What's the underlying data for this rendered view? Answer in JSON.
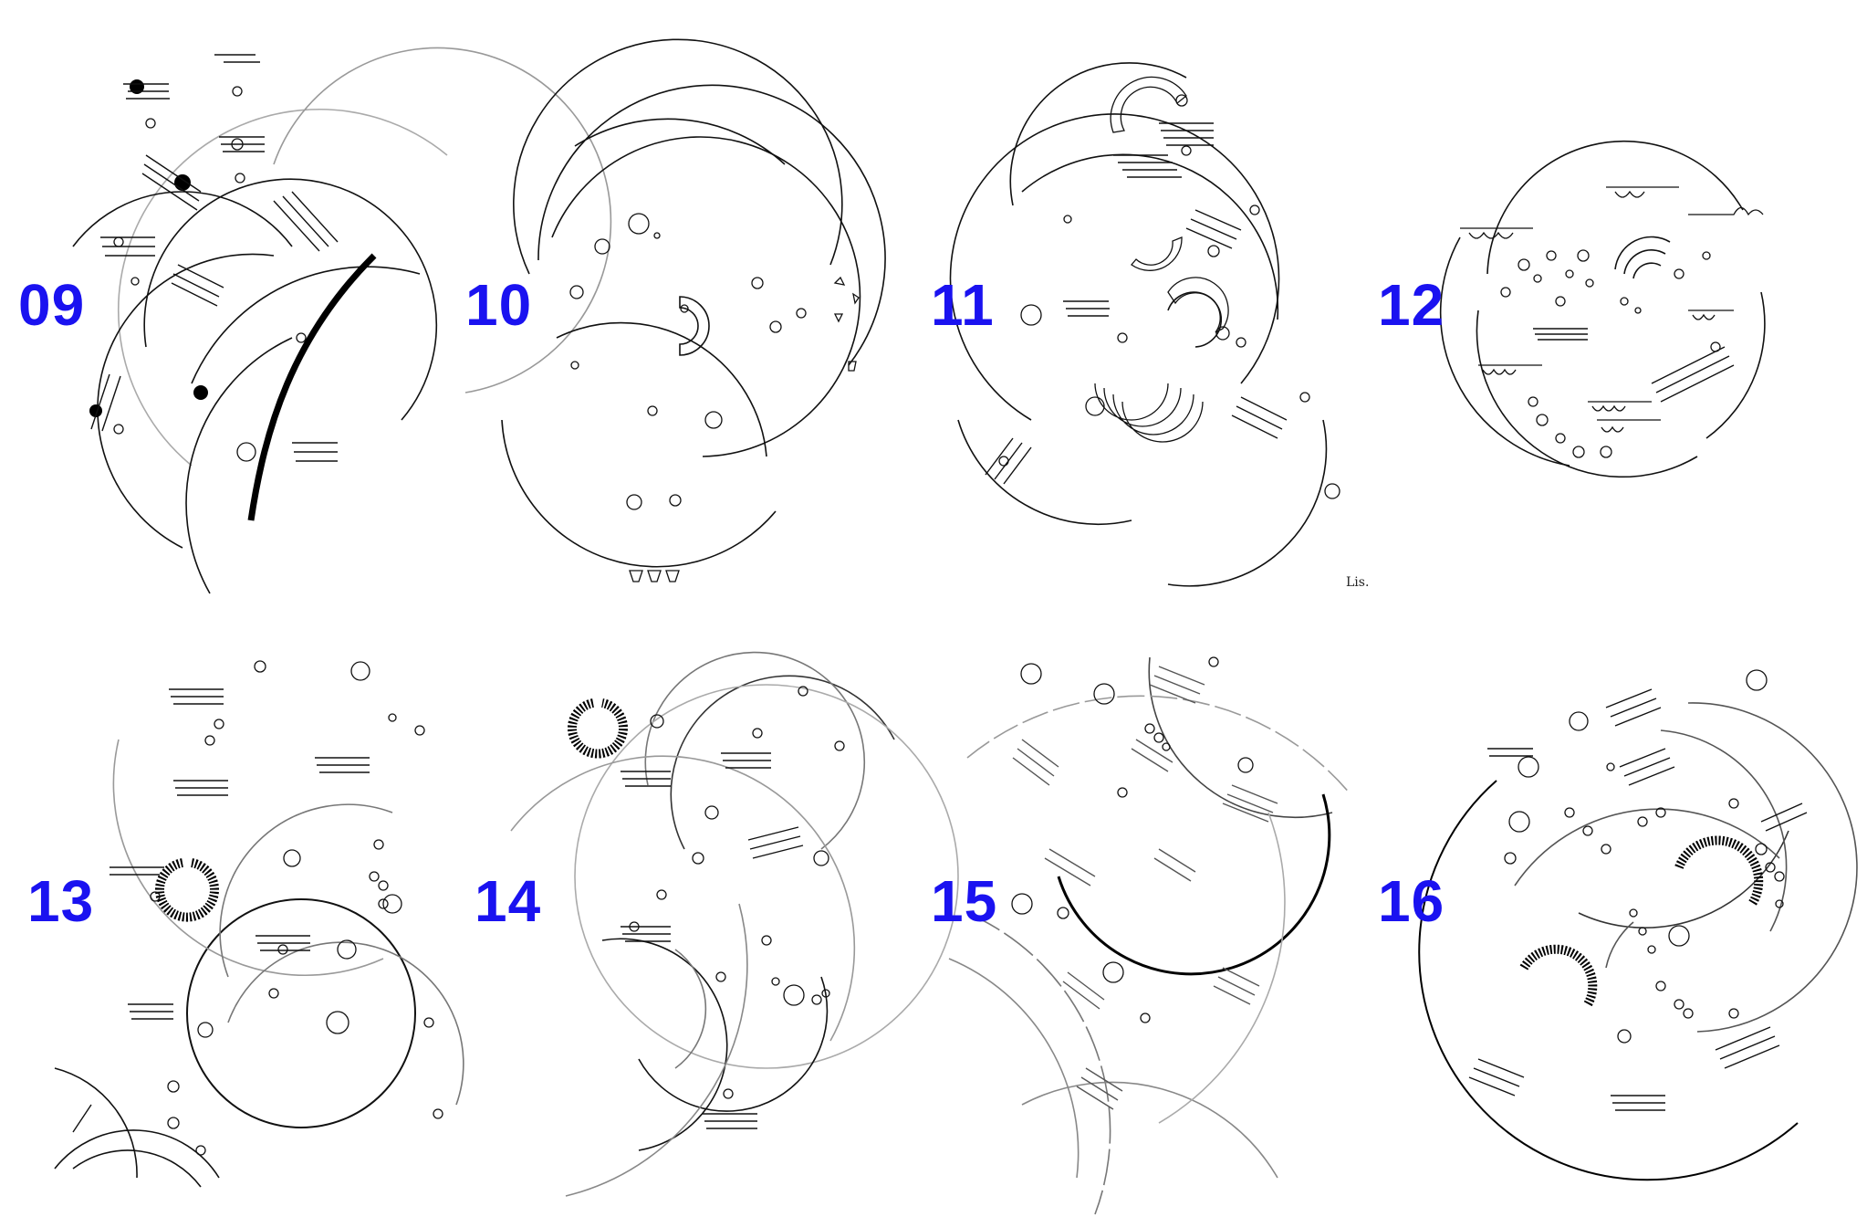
{
  "colors": {
    "label": "#1a12f0",
    "ink": "#111111",
    "faint": "#9a9a9a",
    "paper": "#ffffff"
  },
  "panels": [
    {
      "label": "09"
    },
    {
      "label": "10"
    },
    {
      "label": "11"
    },
    {
      "label": "12"
    },
    {
      "label": "13"
    },
    {
      "label": "14"
    },
    {
      "label": "15"
    },
    {
      "label": "16"
    }
  ],
  "signature": "Lis."
}
